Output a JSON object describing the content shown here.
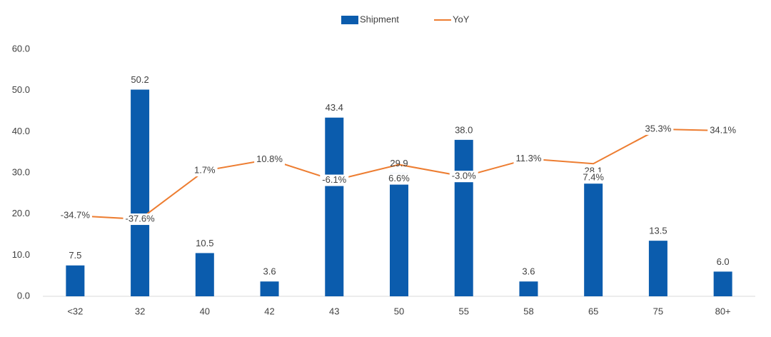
{
  "chart_data": {
    "type": "bar_line",
    "categories": [
      "<32",
      "32",
      "40",
      "42",
      "43",
      "50",
      "55",
      "58",
      "65",
      "75",
      "80+"
    ],
    "series": [
      {
        "name": "Shipment",
        "type": "bar",
        "color": "#0b5cad",
        "values": [
          7.5,
          50.2,
          10.5,
          3.6,
          43.4,
          29.9,
          38.0,
          3.6,
          28.1,
          13.5,
          6.0
        ],
        "value_labels": [
          "7.5",
          "50.2",
          "10.5",
          "3.6",
          "43.4",
          "29.9",
          "38.0",
          "3.6",
          "28.1",
          "13.5",
          "6.0"
        ]
      },
      {
        "name": "YoY",
        "type": "line",
        "axis": "y2",
        "color": "#ed7d31",
        "values": [
          -34.7,
          -37.6,
          1.7,
          10.8,
          -6.1,
          6.6,
          -3.0,
          11.3,
          7.4,
          35.3,
          34.1
        ],
        "value_labels": [
          "-34.7%",
          "-37.6%",
          "1.7%",
          "10.8%",
          "-6.1%",
          "6.6%",
          "-3.0%",
          "11.3%",
          "7.4%",
          "35.3%",
          "34.1%"
        ]
      }
    ],
    "ylim": [
      0,
      60
    ],
    "yticks": [
      {
        "value": 0,
        "label": "0.0"
      },
      {
        "value": 10,
        "label": "10.0"
      },
      {
        "value": 20,
        "label": "20.0"
      },
      {
        "value": 30,
        "label": "30.0"
      },
      {
        "value": 40,
        "label": "40.0"
      },
      {
        "value": 50,
        "label": "50.0"
      },
      {
        "value": 60,
        "label": "60.0"
      }
    ],
    "y2lim": [
      -100,
      100
    ],
    "grid": false,
    "legend": "top"
  }
}
